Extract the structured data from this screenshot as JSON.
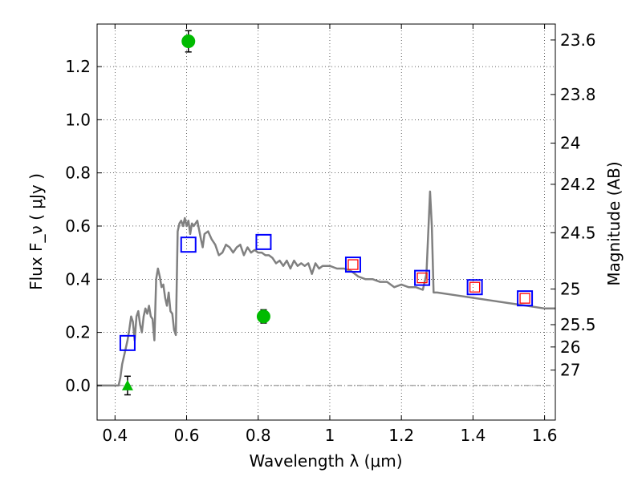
{
  "chart_data": {
    "type": "scatter",
    "xlabel": "Wavelength  λ (μm)",
    "ylabel": "Flux  F_ν  ( μJy )",
    "ylabel_right": "Magnitude (AB)",
    "xlim": [
      0.35,
      1.63
    ],
    "ylim": [
      -0.13,
      1.36
    ],
    "x_ticks": [
      0.4,
      0.6,
      0.8,
      1.0,
      1.2,
      1.4,
      1.6
    ],
    "x_tick_labels": [
      "0.4",
      "0.6",
      "0.8",
      "1",
      "1.2",
      "1.4",
      "1.6"
    ],
    "y_ticks": [
      0.0,
      0.2,
      0.4,
      0.6,
      0.8,
      1.0,
      1.2
    ],
    "y_tick_labels": [
      "0.0",
      "0.2",
      "0.4",
      "0.6",
      "0.8",
      "1.0",
      "1.2"
    ],
    "right_ticks": [
      {
        "flux": 1.3,
        "label": "23.6"
      },
      {
        "flux": 1.095,
        "label": "23.8"
      },
      {
        "flux": 0.912,
        "label": "24"
      },
      {
        "flux": 0.757,
        "label": "24.2"
      },
      {
        "flux": 0.575,
        "label": "24.5"
      },
      {
        "flux": 0.363,
        "label": "25"
      },
      {
        "flux": 0.229,
        "label": "25.5"
      },
      {
        "flux": 0.145,
        "label": "26"
      },
      {
        "flux": 0.058,
        "label": "27"
      }
    ],
    "grid": true,
    "zero_line": true,
    "series": [
      {
        "kind": "line",
        "color": "#808080",
        "x": [
          0.35,
          0.41,
          0.415,
          0.42,
          0.425,
          0.43,
          0.435,
          0.44,
          0.445,
          0.45,
          0.455,
          0.46,
          0.465,
          0.47,
          0.475,
          0.48,
          0.485,
          0.49,
          0.495,
          0.5,
          0.505,
          0.51,
          0.515,
          0.52,
          0.525,
          0.53,
          0.535,
          0.54,
          0.545,
          0.55,
          0.555,
          0.56,
          0.565,
          0.57,
          0.575,
          0.58,
          0.585,
          0.59,
          0.595,
          0.6,
          0.605,
          0.61,
          0.615,
          0.62,
          0.63,
          0.64,
          0.645,
          0.65,
          0.66,
          0.67,
          0.68,
          0.69,
          0.7,
          0.71,
          0.72,
          0.73,
          0.74,
          0.75,
          0.76,
          0.77,
          0.78,
          0.79,
          0.8,
          0.81,
          0.82,
          0.83,
          0.84,
          0.85,
          0.86,
          0.87,
          0.88,
          0.89,
          0.9,
          0.91,
          0.92,
          0.93,
          0.94,
          0.95,
          0.96,
          0.97,
          0.98,
          0.99,
          1.0,
          1.02,
          1.04,
          1.06,
          1.08,
          1.1,
          1.12,
          1.14,
          1.16,
          1.18,
          1.2,
          1.22,
          1.24,
          1.26,
          1.27,
          1.28,
          1.285,
          1.29,
          1.3,
          1.35,
          1.4,
          1.45,
          1.5,
          1.55,
          1.6,
          1.63
        ],
        "y": [
          0.0,
          0.0,
          0.03,
          0.08,
          0.11,
          0.14,
          0.17,
          0.21,
          0.26,
          0.24,
          0.17,
          0.26,
          0.28,
          0.23,
          0.2,
          0.26,
          0.29,
          0.27,
          0.3,
          0.26,
          0.25,
          0.17,
          0.4,
          0.44,
          0.41,
          0.37,
          0.38,
          0.33,
          0.3,
          0.35,
          0.28,
          0.27,
          0.21,
          0.19,
          0.58,
          0.61,
          0.62,
          0.6,
          0.63,
          0.6,
          0.62,
          0.57,
          0.61,
          0.6,
          0.62,
          0.55,
          0.52,
          0.57,
          0.58,
          0.55,
          0.53,
          0.49,
          0.5,
          0.53,
          0.52,
          0.5,
          0.52,
          0.53,
          0.49,
          0.52,
          0.5,
          0.51,
          0.5,
          0.5,
          0.49,
          0.49,
          0.48,
          0.46,
          0.47,
          0.45,
          0.47,
          0.44,
          0.47,
          0.45,
          0.46,
          0.45,
          0.46,
          0.42,
          0.46,
          0.44,
          0.45,
          0.45,
          0.45,
          0.44,
          0.44,
          0.43,
          0.41,
          0.4,
          0.4,
          0.39,
          0.39,
          0.37,
          0.38,
          0.37,
          0.37,
          0.36,
          0.42,
          0.73,
          0.6,
          0.35,
          0.35,
          0.34,
          0.33,
          0.32,
          0.31,
          0.3,
          0.29,
          0.29
        ]
      },
      {
        "kind": "marker-square",
        "color": "#0000ff",
        "x": [
          0.435,
          0.605,
          0.815,
          1.065,
          1.258,
          1.405,
          1.545
        ],
        "y": [
          0.16,
          0.53,
          0.54,
          0.455,
          0.405,
          0.37,
          0.328
        ]
      },
      {
        "kind": "marker-square-small",
        "color": "#ff0000",
        "x": [
          1.065,
          1.258,
          1.405,
          1.545
        ],
        "y": [
          0.455,
          0.405,
          0.37,
          0.328
        ]
      },
      {
        "kind": "marker-circle",
        "color": "#00bb00",
        "x": [
          0.605,
          0.815
        ],
        "y": [
          1.295,
          0.26
        ],
        "err": [
          0.04,
          0.025
        ]
      },
      {
        "kind": "marker-triangle",
        "color": "#00bb00",
        "x": [
          0.435
        ],
        "y": [
          0.0
        ],
        "err": [
          0.035
        ]
      }
    ]
  }
}
